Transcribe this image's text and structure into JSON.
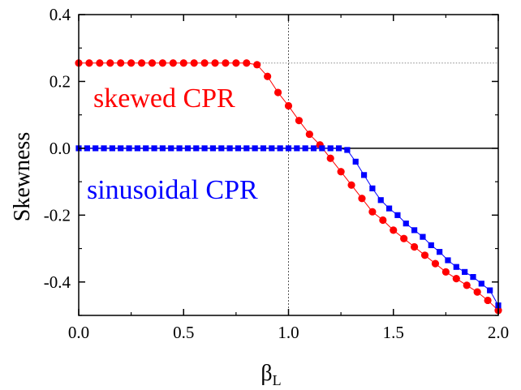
{
  "chart_data": {
    "type": "scatter",
    "xlabel": "β",
    "xlabel_sub": "L",
    "ylabel": "Skewness",
    "xlim": [
      0.0,
      2.0
    ],
    "ylim": [
      -0.5,
      0.4
    ],
    "xticks": [
      "0.0",
      "0.5",
      "1.0",
      "1.5",
      "2.0"
    ],
    "yticks": [
      "0.4",
      "0.2",
      "0.0",
      "-0.2",
      "-0.4"
    ],
    "grid": false,
    "reference_lines": {
      "horizontal_solid_y": 0.0,
      "horizontal_dotted_y": 0.255,
      "vertical_dotted_x": 1.0
    },
    "annotations": [
      {
        "text": "skewed CPR",
        "color": "#ff0000"
      },
      {
        "text": "sinusoidal CPR",
        "color": "#0000ff"
      }
    ],
    "series": [
      {
        "marker": "circle",
        "color": "#ff0000",
        "x": [
          0.0,
          0.05,
          0.1,
          0.15,
          0.2,
          0.25,
          0.3,
          0.35,
          0.4,
          0.45,
          0.5,
          0.55,
          0.6,
          0.65,
          0.7,
          0.75,
          0.8,
          0.85,
          0.9,
          0.95,
          1.0,
          1.05,
          1.1,
          1.15,
          1.2,
          1.25,
          1.3,
          1.35,
          1.4,
          1.45,
          1.5,
          1.55,
          1.6,
          1.65,
          1.7,
          1.75,
          1.8,
          1.85,
          1.9,
          1.95,
          2.0
        ],
        "y": [
          0.255,
          0.255,
          0.255,
          0.255,
          0.255,
          0.255,
          0.255,
          0.255,
          0.255,
          0.255,
          0.255,
          0.255,
          0.255,
          0.255,
          0.255,
          0.255,
          0.255,
          0.25,
          0.215,
          0.167,
          0.127,
          0.083,
          0.042,
          0.01,
          -0.03,
          -0.07,
          -0.11,
          -0.15,
          -0.19,
          -0.215,
          -0.245,
          -0.27,
          -0.295,
          -0.32,
          -0.345,
          -0.37,
          -0.39,
          -0.41,
          -0.43,
          -0.455,
          -0.485
        ]
      },
      {
        "marker": "square",
        "color": "#0000ff",
        "x": [
          0.0,
          0.04,
          0.08,
          0.12,
          0.16,
          0.2,
          0.24,
          0.28,
          0.32,
          0.36,
          0.4,
          0.44,
          0.48,
          0.52,
          0.56,
          0.6,
          0.64,
          0.68,
          0.72,
          0.76,
          0.8,
          0.84,
          0.88,
          0.92,
          0.96,
          1.0,
          1.04,
          1.08,
          1.12,
          1.16,
          1.2,
          1.24,
          1.28,
          1.32,
          1.36,
          1.4,
          1.44,
          1.48,
          1.52,
          1.56,
          1.6,
          1.64,
          1.68,
          1.72,
          1.76,
          1.8,
          1.84,
          1.88,
          1.92,
          1.96,
          2.0
        ],
        "y": [
          0.0,
          0.0,
          0.0,
          0.0,
          0.0,
          0.0,
          0.0,
          0.0,
          0.0,
          0.0,
          0.0,
          0.0,
          0.0,
          0.0,
          0.0,
          0.0,
          0.0,
          0.0,
          0.0,
          0.0,
          0.0,
          0.0,
          0.0,
          0.0,
          0.0,
          0.0,
          0.0,
          0.0,
          0.0,
          0.0,
          0.0,
          0.0,
          -0.005,
          -0.04,
          -0.08,
          -0.12,
          -0.155,
          -0.18,
          -0.2,
          -0.225,
          -0.245,
          -0.265,
          -0.29,
          -0.31,
          -0.335,
          -0.355,
          -0.37,
          -0.385,
          -0.405,
          -0.425,
          -0.47
        ]
      }
    ]
  }
}
